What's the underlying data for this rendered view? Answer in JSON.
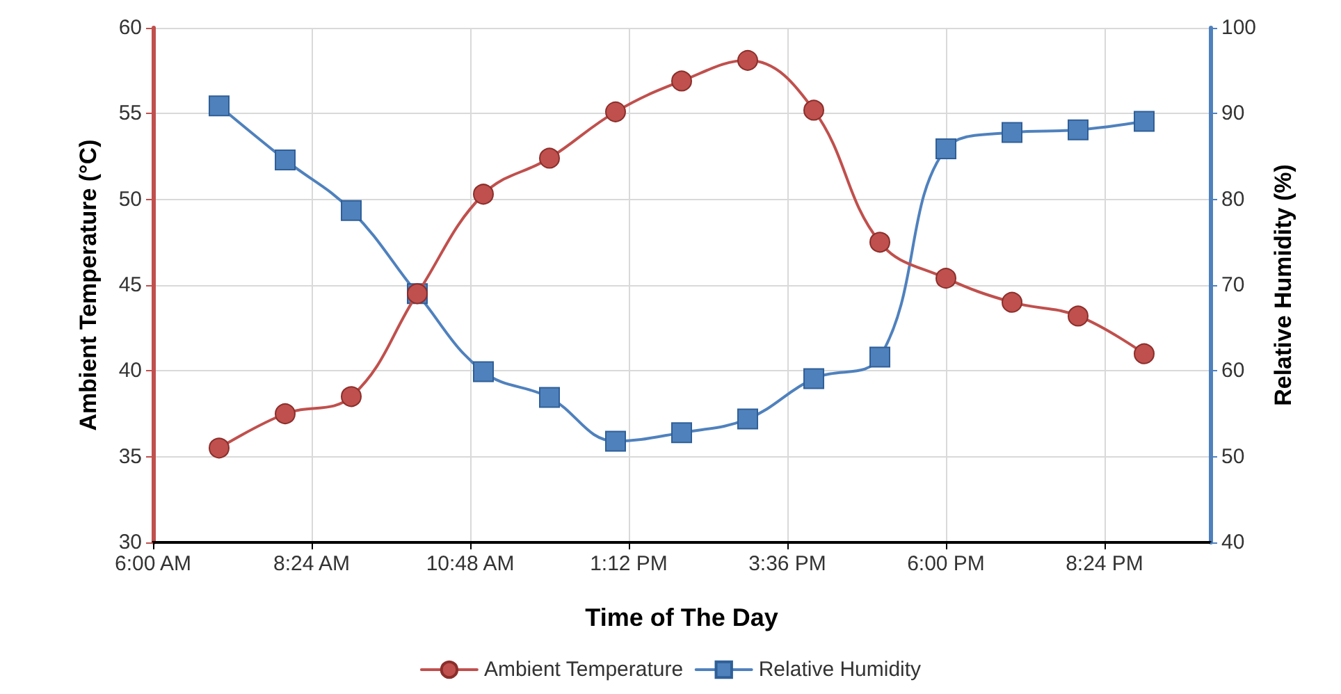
{
  "chart_data": {
    "type": "line",
    "xlabel": "Time of The Day",
    "ylabel": "Ambient Temperature (°C)",
    "y2label": "Relative Humidity (%)",
    "x": [
      7,
      8,
      9,
      10,
      11,
      12,
      13,
      14,
      15,
      16,
      17,
      18,
      19,
      20,
      21
    ],
    "series": [
      {
        "name": "Ambient Temperature",
        "color": "#c0504d",
        "marker": "circle",
        "values": [
          35.5,
          37.5,
          38.5,
          44.5,
          50.3,
          52.4,
          55.1,
          56.9,
          58.1,
          55.2,
          47.5,
          45.4,
          44,
          43.2,
          41
        ]
      },
      {
        "name": "Relative Humidity",
        "color": "#4f81bd",
        "marker": "square",
        "axis": "y2",
        "values": [
          90.9,
          84.6,
          78.7,
          69,
          59.9,
          56.9,
          51.8,
          52.8,
          54.4,
          59.1,
          61.6,
          85.9,
          87.8,
          88.1,
          89.1
        ]
      }
    ],
    "xlim": [
      6,
      22
    ],
    "xticks": [
      {
        "value": 6,
        "label": "6:00 AM"
      },
      {
        "value": 8.4,
        "label": "8:24 AM"
      },
      {
        "value": 10.8,
        "label": "10:48 AM"
      },
      {
        "value": 13.2,
        "label": "1:12 PM"
      },
      {
        "value": 15.6,
        "label": "3:36 PM"
      },
      {
        "value": 18,
        "label": "6:00 PM"
      },
      {
        "value": 20.4,
        "label": "8:24 PM"
      }
    ],
    "ylim": [
      30,
      60
    ],
    "yticks": [
      30,
      35,
      40,
      45,
      50,
      55,
      60
    ],
    "y2lim": [
      40,
      100
    ],
    "y2ticks": [
      40,
      50,
      60,
      70,
      80,
      90,
      100
    ],
    "grid": true,
    "legend": "bottom",
    "line_style": "solid"
  }
}
